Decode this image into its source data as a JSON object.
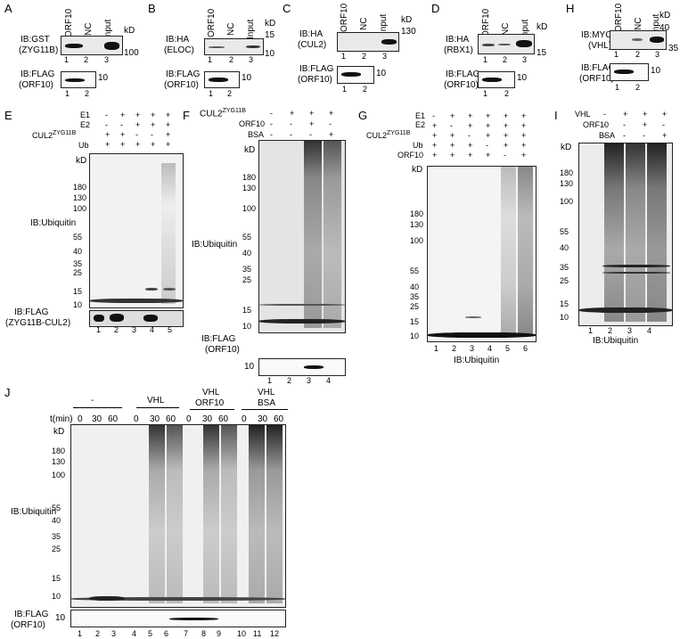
{
  "panels": {
    "A": {
      "letter": "A",
      "ib_gst": "IB:GST",
      "ib_gst_sub": "(ZYG11B)",
      "ib_flag": "IB:FLAG",
      "ib_flag_sub": "(ORF10)",
      "lanes": [
        "ORF10",
        "NC",
        "Input"
      ],
      "kd": "kD",
      "m1": "100",
      "m2": "10",
      "nums": [
        "1",
        "2",
        "3"
      ],
      "nums2": [
        "1",
        "2"
      ]
    },
    "B": {
      "letter": "B",
      "ib1": "IB:HA",
      "ib1_sub": "(ELOC)",
      "ib2": "IB:FLAG",
      "ib2_sub": "(ORF10)",
      "lanes": [
        "ORF10",
        "NC",
        "Input"
      ],
      "kd": "kD",
      "m1": "15",
      "m2": "10",
      "m3": "10",
      "nums": [
        "1",
        "2",
        "3"
      ],
      "nums2": [
        "1",
        "2"
      ]
    },
    "C": {
      "letter": "C",
      "ib1": "IB:HA",
      "ib1_sub": "(CUL2)",
      "ib2": "IB:FLAG",
      "ib2_sub": "(ORF10)",
      "lanes": [
        "ORF10",
        "NC",
        "Input"
      ],
      "kd": "kD",
      "m1": "130",
      "m2": "10",
      "nums": [
        "1",
        "2",
        "3"
      ],
      "nums2": [
        "1",
        "2"
      ]
    },
    "D": {
      "letter": "D",
      "ib1": "IB:HA",
      "ib1_sub": "(RBX1)",
      "ib2": "IB:FLAG",
      "ib2_sub": "(ORF10)",
      "lanes": [
        "ORF10",
        "NC",
        "Input"
      ],
      "kd": "kD",
      "m1": "15",
      "m2": "10",
      "nums": [
        "1",
        "2",
        "3"
      ],
      "nums2": [
        "1",
        "2"
      ]
    },
    "H": {
      "letter": "H",
      "ib1": "IB:MYC",
      "ib1_sub": "(VHL)",
      "ib2": "IB:FLAG",
      "ib2_sub": "(ORF10)",
      "lanes": [
        "ORF10",
        "NC",
        "Input"
      ],
      "kd": "kD",
      "m1": "40",
      "m2": "35",
      "m3": "10",
      "nums": [
        "1",
        "2",
        "3"
      ],
      "nums2": [
        "1",
        "2"
      ]
    },
    "E": {
      "letter": "E",
      "rows": [
        {
          "label": "E1",
          "vals": [
            "-",
            "+",
            "+",
            "+",
            "+"
          ]
        },
        {
          "label": "E2",
          "vals": [
            "-",
            "-",
            "+",
            "+",
            "+"
          ]
        },
        {
          "label": "CUL2",
          "sup": "ZYG11B",
          "vals": [
            "+",
            "+",
            "-",
            "-",
            "+"
          ]
        },
        {
          "label": "Ub",
          "vals": [
            "+",
            "+",
            "+",
            "+",
            "+"
          ]
        }
      ],
      "kd": "kD",
      "markers": [
        "180",
        "130",
        "100",
        "55",
        "40",
        "35",
        "25",
        "15",
        "10"
      ],
      "ib_main": "IB:Ubiquitin",
      "ib_flag": "IB:FLAG",
      "ib_flag_sub": "(ZYG11B-CUL2)",
      "nums": [
        "1",
        "2",
        "3",
        "4",
        "5"
      ]
    },
    "F": {
      "letter": "F",
      "rows": [
        {
          "label": "CUL2",
          "sup": "ZYG11B",
          "vals": [
            "-",
            "+",
            "+",
            "+"
          ]
        },
        {
          "label": "ORF10",
          "vals": [
            "-",
            "-",
            "+",
            "-"
          ]
        },
        {
          "label": "BSA",
          "vals": [
            "-",
            "-",
            "-",
            "+"
          ]
        }
      ],
      "kd": "kD",
      "markers": [
        "180",
        "130",
        "100",
        "55",
        "40",
        "35",
        "25",
        "15",
        "10"
      ],
      "ib_main": "IB:Ubiquitin",
      "ib_flag": "IB:FLAG",
      "ib_flag_sub": "(ORF10)",
      "flag_m": "10",
      "nums": [
        "1",
        "2",
        "3",
        "4"
      ]
    },
    "G": {
      "letter": "G",
      "rows": [
        {
          "label": "E1",
          "vals": [
            "-",
            "+",
            "+",
            "+",
            "+",
            "+"
          ]
        },
        {
          "label": "E2",
          "vals": [
            "+",
            "-",
            "+",
            "+",
            "+",
            "+"
          ]
        },
        {
          "label": "CUL2",
          "sup": "ZYG11B",
          "vals": [
            "+",
            "+",
            "-",
            "+",
            "+",
            "+"
          ]
        },
        {
          "label": "Ub",
          "vals": [
            "+",
            "+",
            "+",
            "-",
            "+",
            "+"
          ]
        },
        {
          "label": "ORF10",
          "vals": [
            "+",
            "+",
            "+",
            "+",
            "-",
            "+"
          ]
        }
      ],
      "kd": "kD",
      "markers": [
        "180",
        "130",
        "100",
        "55",
        "40",
        "35",
        "25",
        "15",
        "10"
      ],
      "ib": "IB:Ubiquitin",
      "nums": [
        "1",
        "2",
        "3",
        "4",
        "5",
        "6"
      ]
    },
    "I": {
      "letter": "I",
      "rows": [
        {
          "label": "VHL",
          "vals": [
            "-",
            "+",
            "+",
            "+"
          ]
        },
        {
          "label": "ORF10",
          "vals": [
            "-",
            "-",
            "+",
            "-"
          ]
        },
        {
          "label": "BSA",
          "vals": [
            "-",
            "-",
            "-",
            "+"
          ]
        }
      ],
      "kd": "kD",
      "markers": [
        "180",
        "130",
        "100",
        "55",
        "40",
        "35",
        "25",
        "15",
        "10"
      ],
      "ib": "IB:Ubiquitin",
      "nums": [
        "1",
        "2",
        "3",
        "4"
      ]
    },
    "J": {
      "letter": "J",
      "groups": [
        "-",
        "VHL",
        "VHL\nORF10",
        "VHL\nBSA"
      ],
      "g_minus": "-",
      "g_vhl": "VHL",
      "g_vhl_orf": [
        "VHL",
        "ORF10"
      ],
      "g_vhl_bsa": [
        "VHL",
        "BSA"
      ],
      "tmin": "t(min)",
      "times": [
        "0",
        "30",
        "60",
        "0",
        "30",
        "60",
        "0",
        "30",
        "60",
        "0",
        "30",
        "60"
      ],
      "kd": "kD",
      "markers": [
        "180",
        "130",
        "100",
        "55",
        "40",
        "35",
        "25",
        "15",
        "10"
      ],
      "ib_main": "IB:Ubiquitin",
      "ib_flag": "IB:FLAG",
      "ib_flag_sub": "(ORF10)",
      "flag_m": "10",
      "nums": [
        "1",
        "2",
        "3",
        "4",
        "5",
        "6",
        "7",
        "8",
        "9",
        "10",
        "11",
        "12"
      ]
    }
  }
}
